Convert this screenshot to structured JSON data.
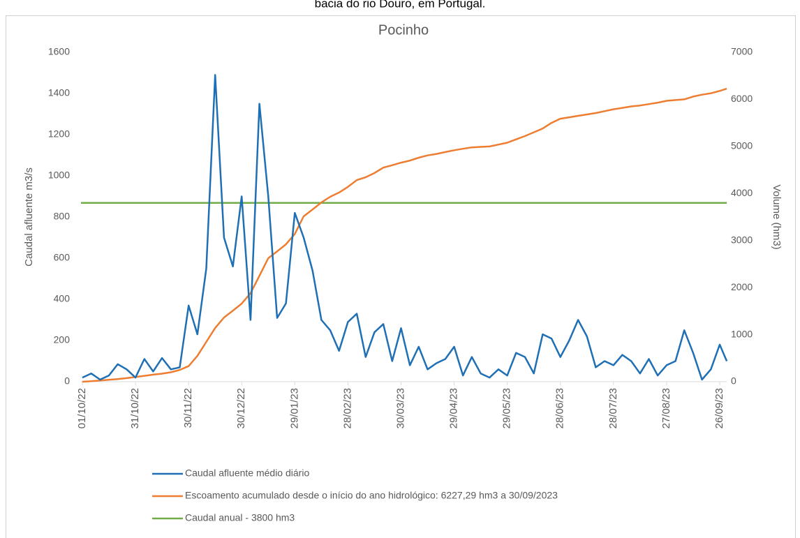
{
  "header_text": "bacia do rio Douro, em Portugal.",
  "chart_data": {
    "type": "line",
    "title": "Pocinho",
    "y_label": "Caudal afluente m3/s",
    "y2_label": "Volume (hm3)",
    "x": [
      "01/10/22",
      "06/10/22",
      "11/10/22",
      "16/10/22",
      "21/10/22",
      "26/10/22",
      "31/10/22",
      "05/11/22",
      "10/11/22",
      "15/11/22",
      "20/11/22",
      "25/11/22",
      "30/11/22",
      "05/12/22",
      "10/12/22",
      "15/12/22",
      "20/12/22",
      "25/12/22",
      "30/12/22",
      "04/01/23",
      "09/01/23",
      "14/01/23",
      "19/01/23",
      "24/01/23",
      "29/01/23",
      "03/02/23",
      "08/02/23",
      "13/02/23",
      "18/02/23",
      "23/02/23",
      "28/02/23",
      "05/03/23",
      "10/03/23",
      "15/03/23",
      "20/03/23",
      "25/03/23",
      "30/03/23",
      "04/04/23",
      "09/04/23",
      "14/04/23",
      "19/04/23",
      "24/04/23",
      "29/04/23",
      "04/05/23",
      "09/05/23",
      "14/05/23",
      "19/05/23",
      "24/05/23",
      "29/05/23",
      "03/06/23",
      "08/06/23",
      "13/06/23",
      "18/06/23",
      "23/06/23",
      "28/06/23",
      "03/07/23",
      "08/07/23",
      "13/07/23",
      "18/07/23",
      "23/07/23",
      "28/07/23",
      "02/08/23",
      "07/08/23",
      "12/08/23",
      "17/08/23",
      "22/08/23",
      "27/08/23",
      "01/09/23",
      "06/09/23",
      "11/09/23",
      "16/09/23",
      "21/09/23",
      "26/09/23",
      "30/09/23"
    ],
    "xlim": [
      "01/10/22",
      "30/09/23"
    ],
    "xticks": [
      "01/10/22",
      "31/10/22",
      "30/11/22",
      "30/12/22",
      "29/01/23",
      "28/02/23",
      "30/03/23",
      "29/04/23",
      "29/05/23",
      "28/06/23",
      "28/07/23",
      "27/08/23",
      "26/09/23"
    ],
    "ylim": [
      0,
      1600
    ],
    "yticks": [
      0,
      200,
      400,
      600,
      800,
      1000,
      1200,
      1400,
      1600
    ],
    "y2lim": [
      0,
      7000
    ],
    "y2ticks": [
      0,
      1000,
      2000,
      3000,
      4000,
      5000,
      6000,
      7000
    ],
    "grid": false,
    "legend": "bottom",
    "series": [
      {
        "name": "Caudal afluente médio diário",
        "color": "#1f6fb4",
        "values": [
          20,
          40,
          10,
          30,
          85,
          60,
          20,
          110,
          50,
          115,
          60,
          70,
          370,
          230,
          550,
          1490,
          700,
          560,
          900,
          300,
          1350,
          900,
          310,
          380,
          820,
          700,
          540,
          300,
          250,
          150,
          290,
          330,
          120,
          240,
          280,
          100,
          260,
          80,
          170,
          60,
          90,
          110,
          170,
          30,
          120,
          40,
          20,
          60,
          30,
          140,
          120,
          40,
          230,
          210,
          120,
          200,
          300,
          220,
          70,
          100,
          80,
          130,
          100,
          40,
          110,
          30,
          80,
          100,
          250,
          140,
          10,
          60,
          180,
          100
        ]
      },
      {
        "name": "Escoamento acumulado desde o início do ano hidrológico: 6227,29 hm3 a 30/09/2023",
        "color": "#ed7d31",
        "axis": "y2",
        "values": [
          0,
          10,
          25,
          40,
          55,
          75,
          100,
          125,
          150,
          170,
          200,
          250,
          330,
          550,
          845,
          1140,
          1365,
          1510,
          1660,
          1880,
          2250,
          2625,
          2770,
          2920,
          3140,
          3515,
          3660,
          3810,
          3930,
          4020,
          4140,
          4285,
          4345,
          4435,
          4550,
          4600,
          4655,
          4700,
          4760,
          4810,
          4840,
          4880,
          4920,
          4950,
          4980,
          4990,
          5000,
          5040,
          5080,
          5150,
          5220,
          5300,
          5380,
          5500,
          5590,
          5620,
          5650,
          5680,
          5710,
          5750,
          5790,
          5820,
          5850,
          5870,
          5900,
          5930,
          5970,
          5985,
          6000,
          6060,
          6100,
          6130,
          6180,
          6227
        ]
      },
      {
        "name": "Caudal anual - 3800 hm3",
        "color": "#70ad47",
        "axis": "y2",
        "value": 3800
      }
    ]
  }
}
